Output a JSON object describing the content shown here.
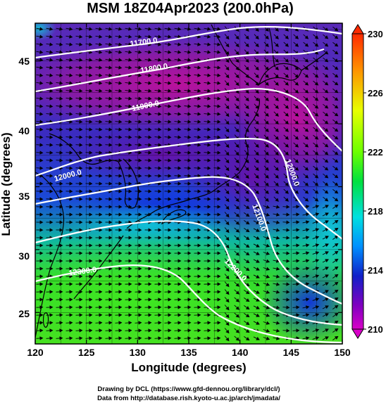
{
  "title": "MSM 18Z04Apr2023 (200.0hPa)",
  "xlabel": "Longitude (degrees)",
  "ylabel": "Latitude  (degrees)",
  "x_ticks": [
    "120",
    "125",
    "130",
    "135",
    "140",
    "145",
    "150"
  ],
  "y_ticks": [
    "25",
    "30",
    "35",
    "40",
    "45"
  ],
  "colorbar": {
    "labels": [
      "230",
      "226",
      "222",
      "218",
      "214",
      "210"
    ],
    "range": [
      210,
      230
    ]
  },
  "contour_labels": [
    "11700.0",
    "11800.0",
    "11900.0",
    "12000.0",
    "12000.0",
    "12100.0",
    "12200.0",
    "12300.0"
  ],
  "credits": {
    "line1": "Drawing by DCL (https://www.gfd-dennou.org/library/dcl/)",
    "line2": "Data from http://database.rish.kyoto-u.ac.jp/arch/jmadata/"
  },
  "map_data": {
    "type": "temperature field with geopotential height contours and wind vectors",
    "lon_range": [
      120,
      150
    ],
    "lat_range": [
      22.5,
      48
    ]
  }
}
